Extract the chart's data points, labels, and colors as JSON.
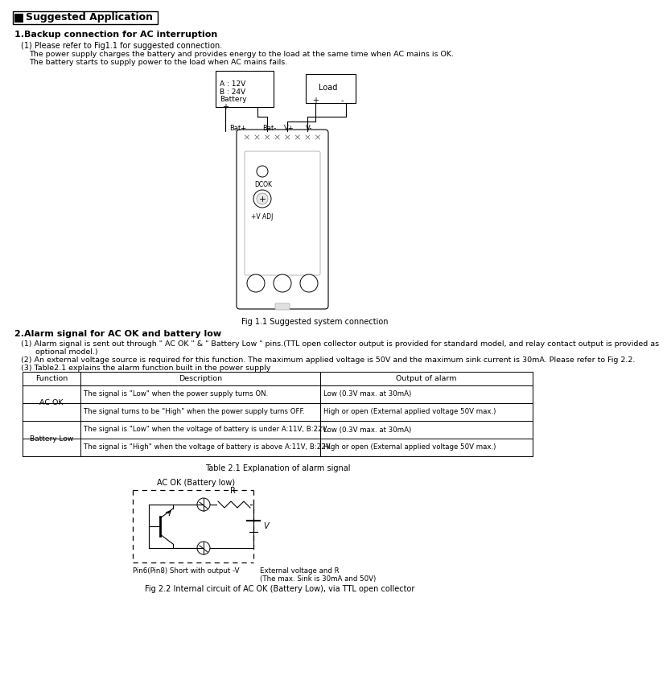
{
  "title": "Suggested Application",
  "section1_title": "1.Backup connection for AC interruption",
  "section1_text1": "(1) Please refer to Fig1.1 for suggested connection.",
  "section1_text2": "The power supply charges the battery and provides energy to the load at the same time when AC mains is OK.",
  "section1_text3": "The battery starts to supply power to the load when AC mains fails.",
  "fig1_caption": "Fig 1.1 Suggested system connection",
  "section2_title": "2.Alarm signal for AC OK and battery low",
  "section2_text1": "(1) Alarm signal is sent out through \" AC OK \" & \" Battery Low \" pins.(TTL open collector output is provided for standard model, and relay contact output is provided as",
  "section2_text1b": "      optional model.)",
  "section2_text2": "(2) An external voltage source is required for this function. The maximum applied voltage is 50V and the maximum sink current is 30mA. Please refer to Fig 2.2.",
  "section2_text3": "(3) Table2.1 explains the alarm function built in the power supply",
  "table_caption": "Table 2.1 Explanation of alarm signal",
  "table_headers": [
    "Function",
    "Description",
    "Output of alarm"
  ],
  "table_rows": [
    [
      "AC OK",
      "The signal is \"Low\" when the power supply turns ON.",
      "Low (0.3V max. at 30mA)"
    ],
    [
      "AC OK",
      "The signal turns to be \"High\" when the power supply turns OFF.",
      "High or open (External applied voltage 50V max.)"
    ],
    [
      "Battery Low",
      "The signal is \"Low\" when the voltage of battery is under A:11V, B:22V.",
      "Low (0.3V max. at 30mA)"
    ],
    [
      "Battery Low",
      "The signal is \"High\" when the voltage of battery is above A:11V, B:22V.",
      "High or open (External applied voltage 50V max.)"
    ]
  ],
  "fig2_caption": "Fig 2.2 Internal circuit of AC OK (Battery Low), via TTL open collector",
  "fig2_title": "AC OK (Battery low)",
  "fig2_pin_label": "Pin6(Pin8) Short with output -V",
  "fig2_ext_label1": "External voltage and R",
  "fig2_ext_label2": "(The max. Sink is 30mA and 50V)",
  "bg_color": "#ffffff",
  "text_color": "#000000"
}
